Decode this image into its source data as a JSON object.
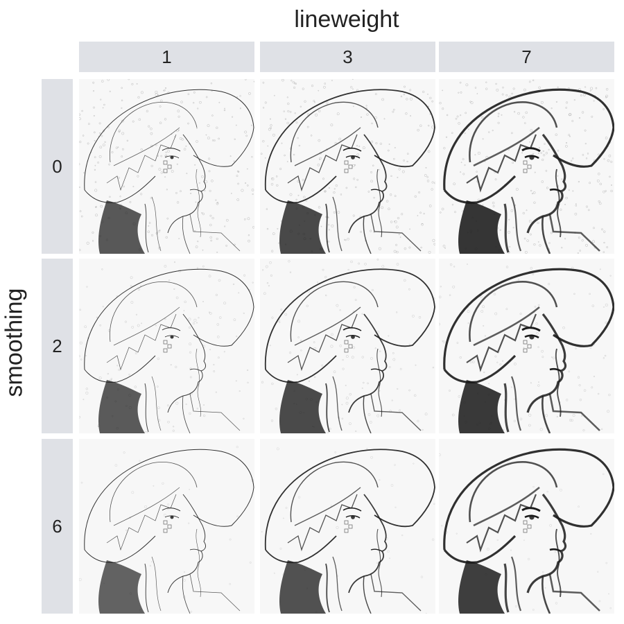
{
  "facet": {
    "col_title": "lineweight",
    "row_title": "smoothing",
    "columns": [
      "1",
      "3",
      "7"
    ],
    "rows": [
      "0",
      "2",
      "6"
    ]
  },
  "panels": [
    {
      "lineweight": 1,
      "smoothing": 0,
      "stroke": 1.0,
      "shade": 0.28,
      "noise": 0.9
    },
    {
      "lineweight": 3,
      "smoothing": 0,
      "stroke": 1.8,
      "shade": 0.4,
      "noise": 0.9
    },
    {
      "lineweight": 7,
      "smoothing": 0,
      "stroke": 3.2,
      "shade": 0.55,
      "noise": 0.9
    },
    {
      "lineweight": 1,
      "smoothing": 2,
      "stroke": 1.0,
      "shade": 0.26,
      "noise": 0.45
    },
    {
      "lineweight": 3,
      "smoothing": 2,
      "stroke": 1.8,
      "shade": 0.38,
      "noise": 0.45
    },
    {
      "lineweight": 7,
      "smoothing": 2,
      "stroke": 3.2,
      "shade": 0.52,
      "noise": 0.45
    },
    {
      "lineweight": 1,
      "smoothing": 6,
      "stroke": 1.0,
      "shade": 0.22,
      "noise": 0.12
    },
    {
      "lineweight": 3,
      "smoothing": 6,
      "stroke": 1.8,
      "shade": 0.34,
      "noise": 0.12
    },
    {
      "lineweight": 7,
      "smoothing": 6,
      "stroke": 3.2,
      "shade": 0.48,
      "noise": 0.12
    }
  ],
  "colors": {
    "strip": "#dfe1e6",
    "ink": "#1a1a1a",
    "paper": "#f7f7f7"
  }
}
